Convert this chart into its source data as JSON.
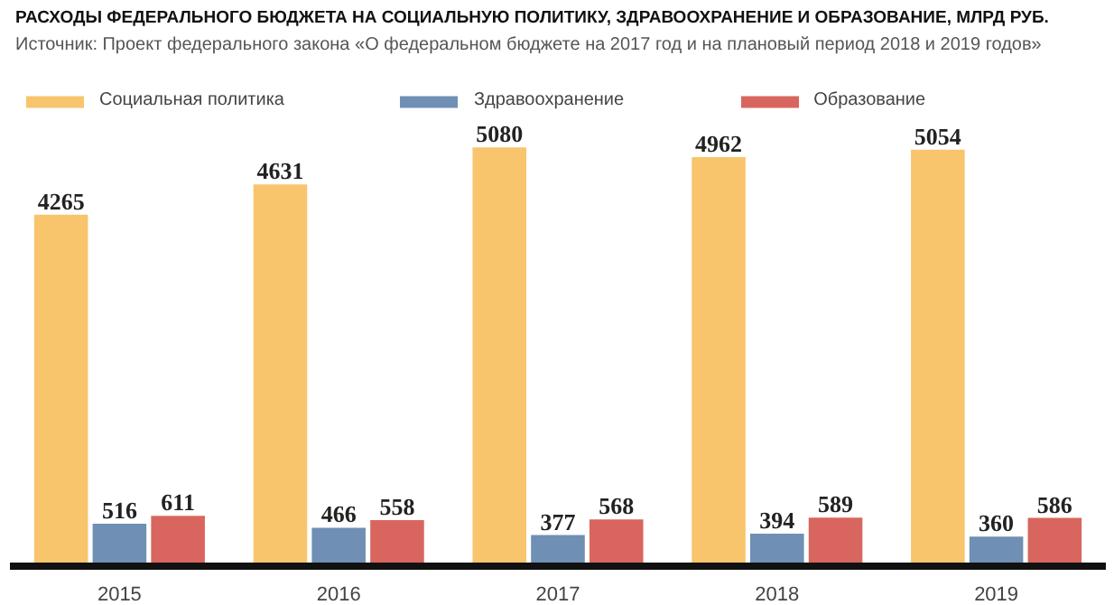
{
  "chart_data": {
    "type": "bar",
    "title": "РАСХОДЫ ФЕДЕРАЛЬНОГО БЮДЖЕТА НА СОЦИАЛЬНУЮ ПОЛИТИКУ, ЗДРАВООХРАНЕНИЕ И ОБРАЗОВАНИЕ, МЛРД РУБ.",
    "subtitle": "Источник: Проект федерального закона «О федеральном бюджете на 2017 год и на плановый период 2018 и 2019 годов»",
    "categories": [
      "2015",
      "2016",
      "2017",
      "2018",
      "2019"
    ],
    "series": [
      {
        "name": "Социальная политика",
        "color": "#f8c56d",
        "values": [
          4265,
          4631,
          5080,
          4962,
          5054
        ]
      },
      {
        "name": "Здравоохранение",
        "color": "#6f8fb4",
        "values": [
          516,
          466,
          377,
          394,
          360
        ]
      },
      {
        "name": "Образование",
        "color": "#d9665e",
        "values": [
          611,
          558,
          568,
          589,
          586
        ]
      }
    ],
    "data_labels": true,
    "legend": "top",
    "grid": false
  }
}
